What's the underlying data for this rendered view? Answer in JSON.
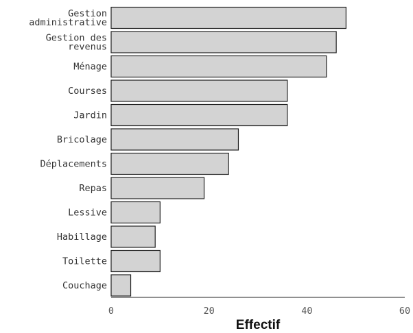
{
  "chart_data": {
    "type": "bar",
    "orientation": "horizontal",
    "categories": [
      "Gestion\nadministrative",
      "Gestion des\nrevenus",
      "Ménage",
      "Courses",
      "Jardin",
      "Bricolage",
      "Déplacements",
      "Repas",
      "Lessive",
      "Habillage",
      "Toilette",
      "Couchage"
    ],
    "values": [
      48,
      46,
      44,
      36,
      36,
      26,
      24,
      19,
      10,
      9,
      10,
      4
    ],
    "xlabel": "Effectif",
    "ylabel": "",
    "title": "",
    "xlim": [
      0,
      60
    ],
    "xticks": [
      "0",
      "20",
      "40",
      "60"
    ],
    "grid": false,
    "colors": {
      "bar_fill": "#d3d3d3",
      "bar_stroke": "#222222"
    }
  }
}
